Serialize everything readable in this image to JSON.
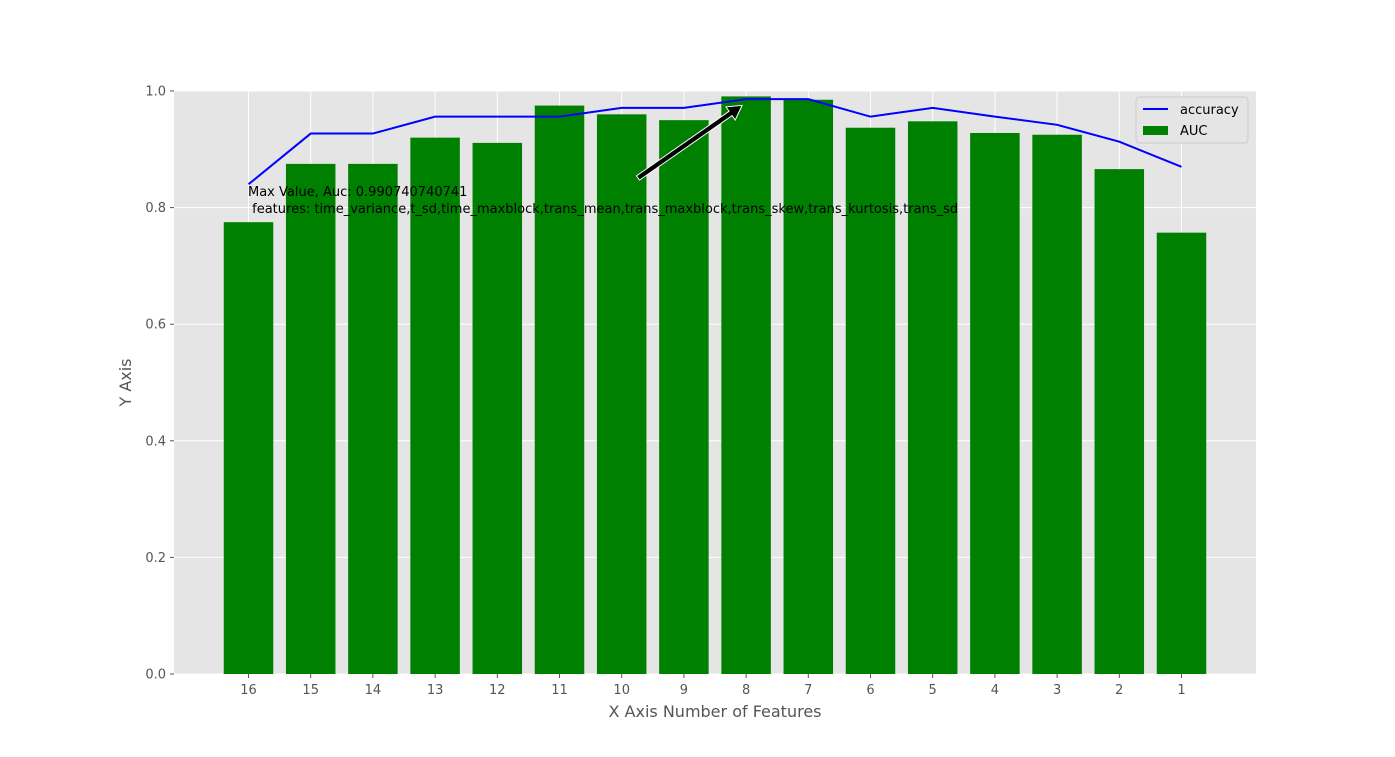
{
  "chart_data": {
    "type": "bar",
    "title": "",
    "xlabel": "X Axis Number of Features",
    "ylabel": "Y Axis",
    "categories": [
      "16",
      "15",
      "14",
      "13",
      "12",
      "11",
      "10",
      "9",
      "8",
      "7",
      "6",
      "5",
      "4",
      "3",
      "2",
      "1"
    ],
    "ylim": [
      0.0,
      1.0
    ],
    "yticks": [
      "0.0",
      "0.2",
      "0.4",
      "0.6",
      "0.8",
      "1.0"
    ],
    "grid": true,
    "legend_position": "top-right",
    "series": [
      {
        "name": "AUC",
        "kind": "bar",
        "color": "#008000",
        "values": [
          0.775,
          0.875,
          0.875,
          0.92,
          0.911,
          0.975,
          0.96,
          0.95,
          0.9907,
          0.985,
          0.937,
          0.948,
          0.928,
          0.925,
          0.866,
          0.757
        ]
      },
      {
        "name": "accuracy",
        "kind": "line",
        "color": "#0000ff",
        "values": [
          0.84,
          0.927,
          0.927,
          0.956,
          0.956,
          0.956,
          0.971,
          0.971,
          0.986,
          0.986,
          0.956,
          0.971,
          0.956,
          0.942,
          0.913,
          0.87
        ]
      }
    ],
    "annotation": {
      "line1": "Max Value, Auc: 0.990740740741",
      "line2": " features: time_variance,t_sd,time_maxblock,trans_mean,trans_maxblock,trans_skew,trans_kurtosis,trans_sd",
      "target_category": "8",
      "target_value": 0.9907
    },
    "colors": {
      "plot_background": "#e5e5e5",
      "grid": "#ffffff",
      "arrow": "#000000"
    }
  }
}
